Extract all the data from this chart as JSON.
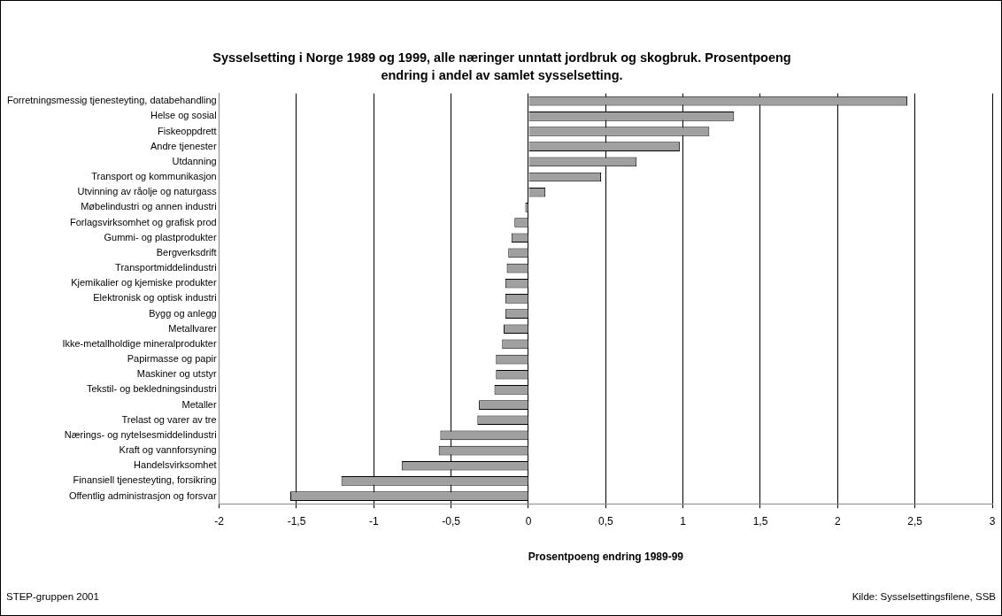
{
  "chart_data": {
    "type": "bar",
    "orientation": "horizontal",
    "title": "Sysselsetting i Norge 1989 og 1999, alle næringer unntatt jordbruk og skogbruk. Prosentpoeng endring i andel av samlet sysselsetting.",
    "xlabel": "Prosentpoeng endring 1989-99",
    "categories": [
      "Forretningsmessig tjenesteyting, databehandling",
      "Helse og sosial",
      "Fiskeoppdrett",
      "Andre tjenester",
      "Utdanning",
      "Transport og kommunikasjon",
      "Utvinning av råolje og naturgass",
      "Møbelindustri og annen industri",
      "Forlagsvirksomhet og grafisk prod",
      "Gummi- og plastprodukter",
      "Bergverksdrift",
      "Transportmiddelindustri",
      "Kjemikalier og kjemiske produkter",
      "Elektronisk og optisk industri",
      "Bygg og anlegg",
      "Metallvarer",
      "Ikke-metallholdige mineralprodukter",
      "Papirmasse og papir",
      "Maskiner og utstyr",
      "Tekstil- og bekledningsindustri",
      "Metaller",
      "Trelast og varer av tre",
      "Nærings- og nytelsesmiddelindustri",
      "Kraft og vannforsyning",
      "Handelsvirksomhet",
      "Finansiell tjenesteyting, forsikring",
      "Offentlig administrasjon og forsvar"
    ],
    "values": [
      2.45,
      1.33,
      1.17,
      0.98,
      0.7,
      0.47,
      0.11,
      -0.02,
      -0.09,
      -0.11,
      -0.13,
      -0.14,
      -0.15,
      -0.15,
      -0.15,
      -0.16,
      -0.17,
      -0.21,
      -0.21,
      -0.22,
      -0.32,
      -0.33,
      -0.57,
      -0.58,
      -0.82,
      -1.21,
      -1.54
    ],
    "color": "#a0a0a0",
    "xlim": [
      -2,
      3
    ],
    "xticks": [
      -2,
      {
        "value": -1.5,
        "label": "-1,5"
      },
      -1,
      {
        "value": -0.5,
        "label": "-0,5"
      },
      0,
      {
        "value": 0.5,
        "label": "0,5"
      },
      1,
      {
        "value": 1.5,
        "label": "1,5"
      },
      2,
      {
        "value": 2.5,
        "label": "2,5"
      },
      3
    ],
    "grid": "x",
    "annotations": [
      "STEP-gruppen 2001",
      "Kilde: Sysselsettingsfilene, SSB"
    ]
  }
}
